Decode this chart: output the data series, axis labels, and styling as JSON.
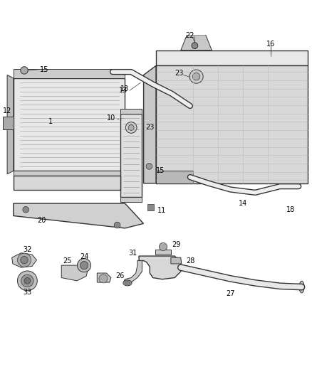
{
  "background_color": "#ffffff",
  "line_color": "#333333",
  "label_color": "#000000",
  "fig_width": 4.38,
  "fig_height": 5.33,
  "dpi": 100
}
